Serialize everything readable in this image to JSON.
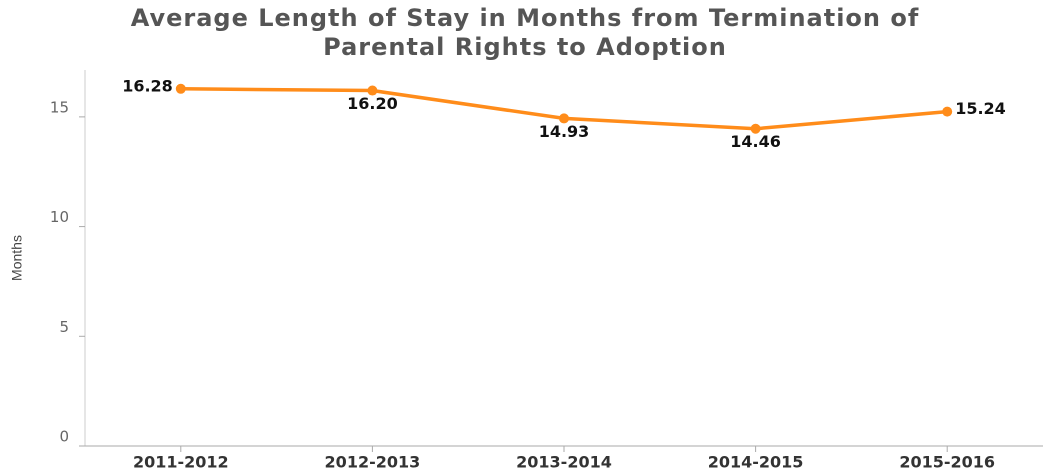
{
  "chart_data": {
    "type": "line",
    "title": [
      "Average Length of Stay in Months from Termination of",
      "Parental Rights to Adoption"
    ],
    "y_label": "Months",
    "categories": [
      "2011-2012",
      "2012-2013",
      "2013-2014",
      "2014-2015",
      "2015-2016"
    ],
    "series": [
      {
        "name": "Average Length of Stay",
        "color": "#ff8c1a",
        "values": [
          16.28,
          16.2,
          14.93,
          14.46,
          15.24
        ],
        "value_labels": [
          "16.28",
          "16.20",
          "14.93",
          "14.46",
          "15.24"
        ]
      }
    ],
    "ylim": [
      0,
      17
    ],
    "yticks": [
      0,
      5,
      10,
      15
    ],
    "grid": false
  }
}
